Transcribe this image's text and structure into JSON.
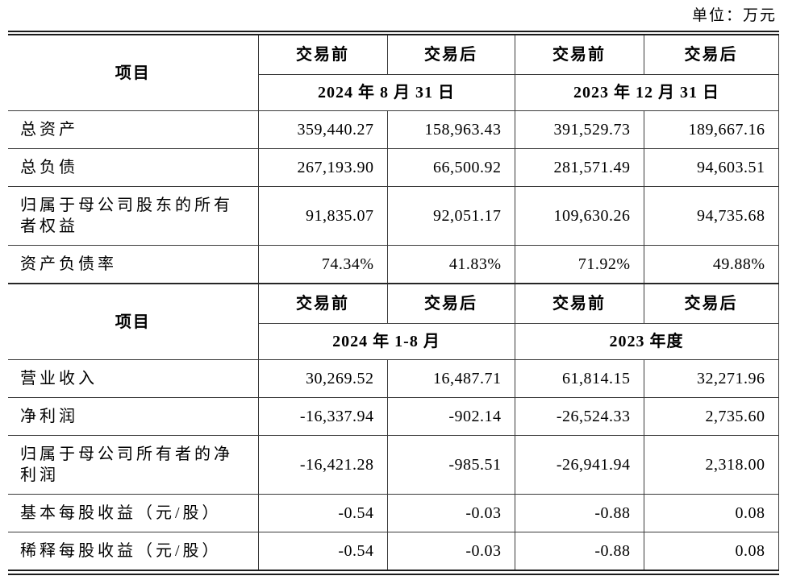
{
  "unit_label": "单位：万元",
  "colors": {
    "background": "#ffffff",
    "text": "#000000",
    "border": "#3a3a3a"
  },
  "sections": [
    {
      "item_header": "项目",
      "col_headers": [
        "交易前",
        "交易后",
        "交易前",
        "交易后"
      ],
      "period_headers": [
        "2024 年 8 月 31 日",
        "2023 年 12 月 31 日"
      ],
      "rows": [
        {
          "label": "总资产",
          "values": [
            "359,440.27",
            "158,963.43",
            "391,529.73",
            "189,667.16"
          ]
        },
        {
          "label": "总负债",
          "values": [
            "267,193.90",
            "66,500.92",
            "281,571.49",
            "94,603.51"
          ]
        },
        {
          "label": "归属于母公司股东的所有者权益",
          "values": [
            "91,835.07",
            "92,051.17",
            "109,630.26",
            "94,735.68"
          ]
        },
        {
          "label": "资产负债率",
          "values": [
            "74.34%",
            "41.83%",
            "71.92%",
            "49.88%"
          ]
        }
      ]
    },
    {
      "item_header": "项目",
      "col_headers": [
        "交易前",
        "交易后",
        "交易前",
        "交易后"
      ],
      "period_headers": [
        "2024 年 1-8 月",
        "2023 年度"
      ],
      "rows": [
        {
          "label": "营业收入",
          "values": [
            "30,269.52",
            "16,487.71",
            "61,814.15",
            "32,271.96"
          ]
        },
        {
          "label": "净利润",
          "values": [
            "-16,337.94",
            "-902.14",
            "-26,524.33",
            "2,735.60"
          ]
        },
        {
          "label": "归属于母公司所有者的净利润",
          "values": [
            "-16,421.28",
            "-985.51",
            "-26,941.94",
            "2,318.00"
          ]
        },
        {
          "label": "基本每股收益（元/股）",
          "values": [
            "-0.54",
            "-0.03",
            "-0.88",
            "0.08"
          ]
        },
        {
          "label": "稀释每股收益（元/股）",
          "values": [
            "-0.54",
            "-0.03",
            "-0.88",
            "0.08"
          ]
        }
      ]
    }
  ]
}
